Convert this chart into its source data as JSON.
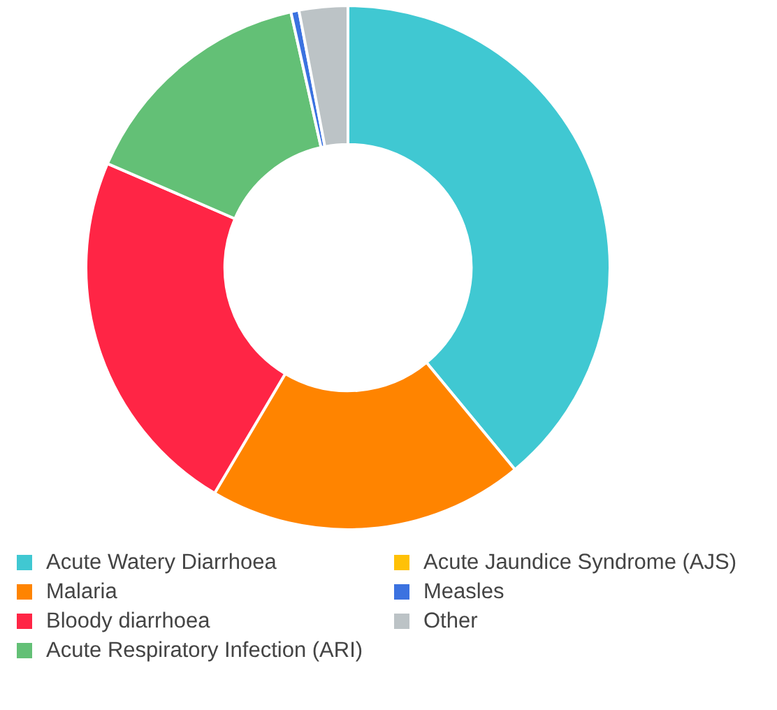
{
  "chart_data": {
    "type": "donut",
    "categories": [
      "Acute Watery Diarrhoea",
      "Malaria",
      "Bloody diarrhoea",
      "Acute Respiratory Infection (ARI)",
      "Acute Jaundice Syndrome (AJS)",
      "Measles",
      "Other"
    ],
    "values": [
      39,
      19.5,
      23,
      15,
      0,
      0.5,
      3
    ],
    "colors": [
      "#40c8d2",
      "#ff8400",
      "#ff2545",
      "#63c076",
      "#ffc107",
      "#3b72e0",
      "#bcc3c6"
    ],
    "legend": "bottom"
  }
}
